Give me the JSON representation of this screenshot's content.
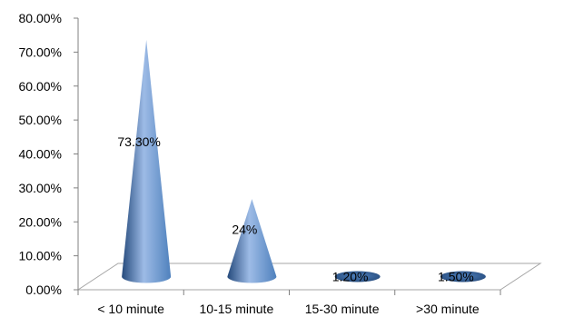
{
  "chart_data": {
    "type": "bar",
    "shape": "cone",
    "categories": [
      "< 10 minute",
      "10-15 minute",
      "15-30 minute",
      ">30 minute"
    ],
    "values": [
      73.3,
      24,
      1.2,
      1.5
    ],
    "data_labels": [
      "73.30%",
      "24%",
      "1.20%",
      "1.50%"
    ],
    "y_ticks": [
      "0.00%",
      "10.00%",
      "20.00%",
      "30.00%",
      "40.00%",
      "50.00%",
      "60.00%",
      "70.00%",
      "80.00%"
    ],
    "ylim": [
      0,
      80
    ],
    "grid": false,
    "legend": "none",
    "colors": {
      "cone_light": "#9dbbe6",
      "cone_mid": "#4f81bd",
      "cone_dark": "#254a7c",
      "floor_line": "#a6a6a6",
      "axis": "#808080",
      "text": "#000000"
    }
  }
}
